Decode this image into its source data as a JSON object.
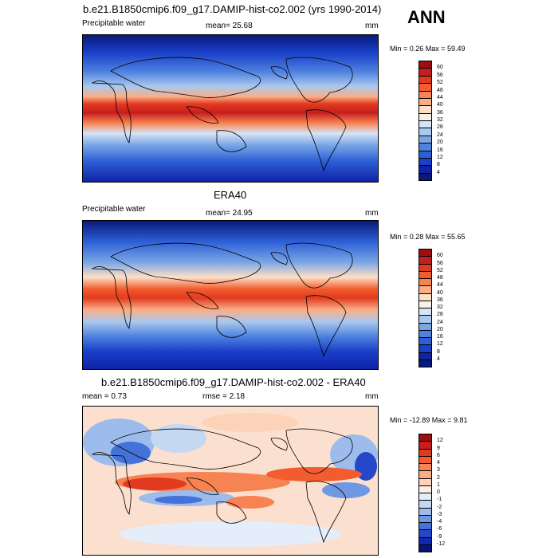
{
  "header": {
    "title": "b.e21.B1850cmip6.f09_g17.DAMIP-hist-co2.002 (yrs 1990-2014)",
    "season": "ANN"
  },
  "panel1": {
    "left_label": "Precipitable water",
    "center_label": "mean=  25.68",
    "right_label": "mm",
    "stats": "Min =   0.26 Max =  59.49",
    "colorbar": {
      "labels": [
        "60",
        "56",
        "52",
        "48",
        "44",
        "40",
        "36",
        "32",
        "28",
        "24",
        "20",
        "16",
        "12",
        "8",
        "4"
      ],
      "colors": [
        "#9e0e0e",
        "#c41e1e",
        "#e23a1f",
        "#f25c2e",
        "#f78352",
        "#fbae86",
        "#fde0c7",
        "#f7f1ea",
        "#d6e4f5",
        "#aac8ee",
        "#7aa6e6",
        "#4e82df",
        "#2d5fd6",
        "#1a3fc9",
        "#0f23a8",
        "#081a7a"
      ]
    }
  },
  "panel2": {
    "title": "ERA40",
    "left_label": "Precipitable water",
    "center_label": "mean=  24.95",
    "right_label": "mm",
    "stats": "Min =  0.28 Max =  55.65",
    "colorbar": {
      "labels": [
        "60",
        "56",
        "52",
        "48",
        "44",
        "40",
        "36",
        "32",
        "28",
        "24",
        "20",
        "16",
        "12",
        "8",
        "4"
      ],
      "colors": [
        "#9e0e0e",
        "#c41e1e",
        "#e23a1f",
        "#f25c2e",
        "#f78352",
        "#fbae86",
        "#fde0c7",
        "#f7f1ea",
        "#d6e4f5",
        "#aac8ee",
        "#7aa6e6",
        "#4e82df",
        "#2d5fd6",
        "#1a3fc9",
        "#0f23a8",
        "#081a7a"
      ]
    }
  },
  "panel3": {
    "title": "b.e21.B1850cmip6.f09_g17.DAMIP-hist-co2.002 - ERA40",
    "left_label": "mean =   0.73",
    "center_label": "rmse =   2.18",
    "right_label": "mm",
    "stats": "Min = -12.89 Max =   9.81",
    "colorbar": {
      "labels": [
        "12",
        "9",
        "6",
        "4",
        "3",
        "2",
        "1",
        "0",
        "-1",
        "-2",
        "-3",
        "-4",
        "-6",
        "-9",
        "-12"
      ],
      "colors": [
        "#9e0e0e",
        "#c41e1e",
        "#e23a1f",
        "#f25c2e",
        "#f78352",
        "#fbae86",
        "#fcd2b8",
        "#fdeee4",
        "#e4eefa",
        "#c4d8f2",
        "#9dbcec",
        "#6e98e2",
        "#4472d8",
        "#2448c8",
        "#1028b0",
        "#081478"
      ]
    }
  }
}
